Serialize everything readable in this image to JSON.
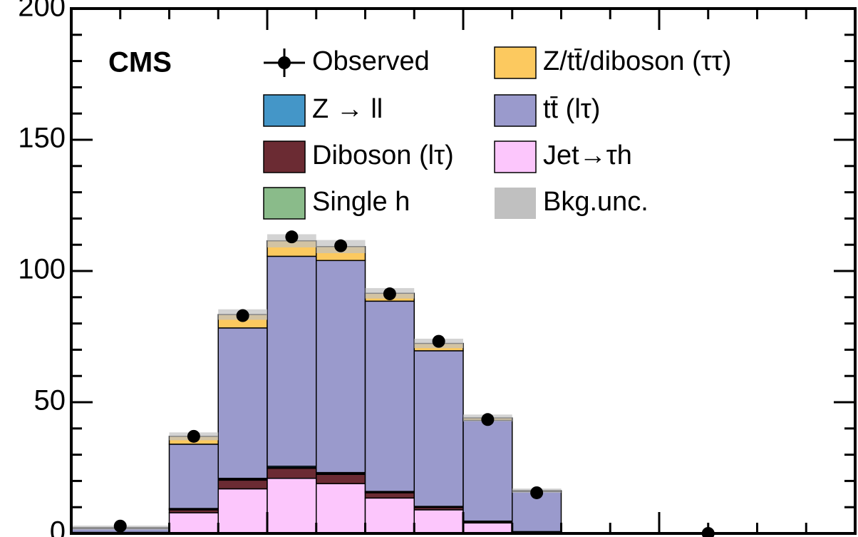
{
  "chart_data": {
    "type": "stacked_histogram",
    "title": "CMS",
    "bins": [
      0,
      2,
      3,
      4,
      5,
      6,
      7,
      8,
      9,
      10
    ],
    "xlim": [
      0,
      16
    ],
    "xticks": [
      0,
      4,
      8,
      12,
      16
    ],
    "ylim": [
      0,
      200
    ],
    "yticks": [
      0,
      50,
      100,
      150,
      200
    ],
    "observed": {
      "name": "Observed",
      "color": "#000000",
      "x": [
        1,
        2.5,
        3.5,
        4.5,
        5.5,
        6.5,
        7.5,
        8.5,
        9.5,
        13
      ],
      "values": [
        2.8,
        37,
        83,
        113,
        109.6,
        91.3,
        73.2,
        43.4,
        15.5,
        0
      ]
    },
    "series": [
      {
        "name": "Jet→τh",
        "color": "#fcc6fc",
        "values": [
          0.3,
          7.9,
          17,
          21,
          19,
          13.5,
          9,
          4,
          0.5
        ]
      },
      {
        "name": "Diboson (lτ)",
        "color": "#6b2b33",
        "values": [
          0.1,
          1.1,
          3.3,
          3.8,
          3.5,
          2,
          0.9,
          0.5,
          0.2
        ]
      },
      {
        "name": "Single h",
        "color": "#8abb8a",
        "values": [
          0,
          0.2,
          0.3,
          0.3,
          0.3,
          0.2,
          0.2,
          0.1,
          0
        ]
      },
      {
        "name": "Z → ll",
        "color": "#4496c8",
        "values": [
          0,
          0.3,
          0.4,
          0.5,
          0.4,
          0.3,
          0.2,
          0.1,
          0
        ]
      },
      {
        "name": "tt̄ (lτ)",
        "color": "#9a9acc",
        "values": [
          1.5,
          24.5,
          57.3,
          80,
          80.8,
          72.5,
          59.3,
          38.4,
          15.3
        ]
      },
      {
        "name": "Z/tt̄/diboson (ττ)",
        "color": "#fcc95f",
        "values": [
          0.3,
          3,
          5.1,
          5.9,
          5.3,
          3,
          2.8,
          0.9,
          0.3
        ]
      }
    ],
    "uncertainty": {
      "name": "Bkg.unc.",
      "color": "#c0c0c0",
      "values": [
        0.8,
        1.5,
        2,
        2.5,
        2.5,
        2,
        1.8,
        1.3,
        0.8
      ]
    }
  }
}
